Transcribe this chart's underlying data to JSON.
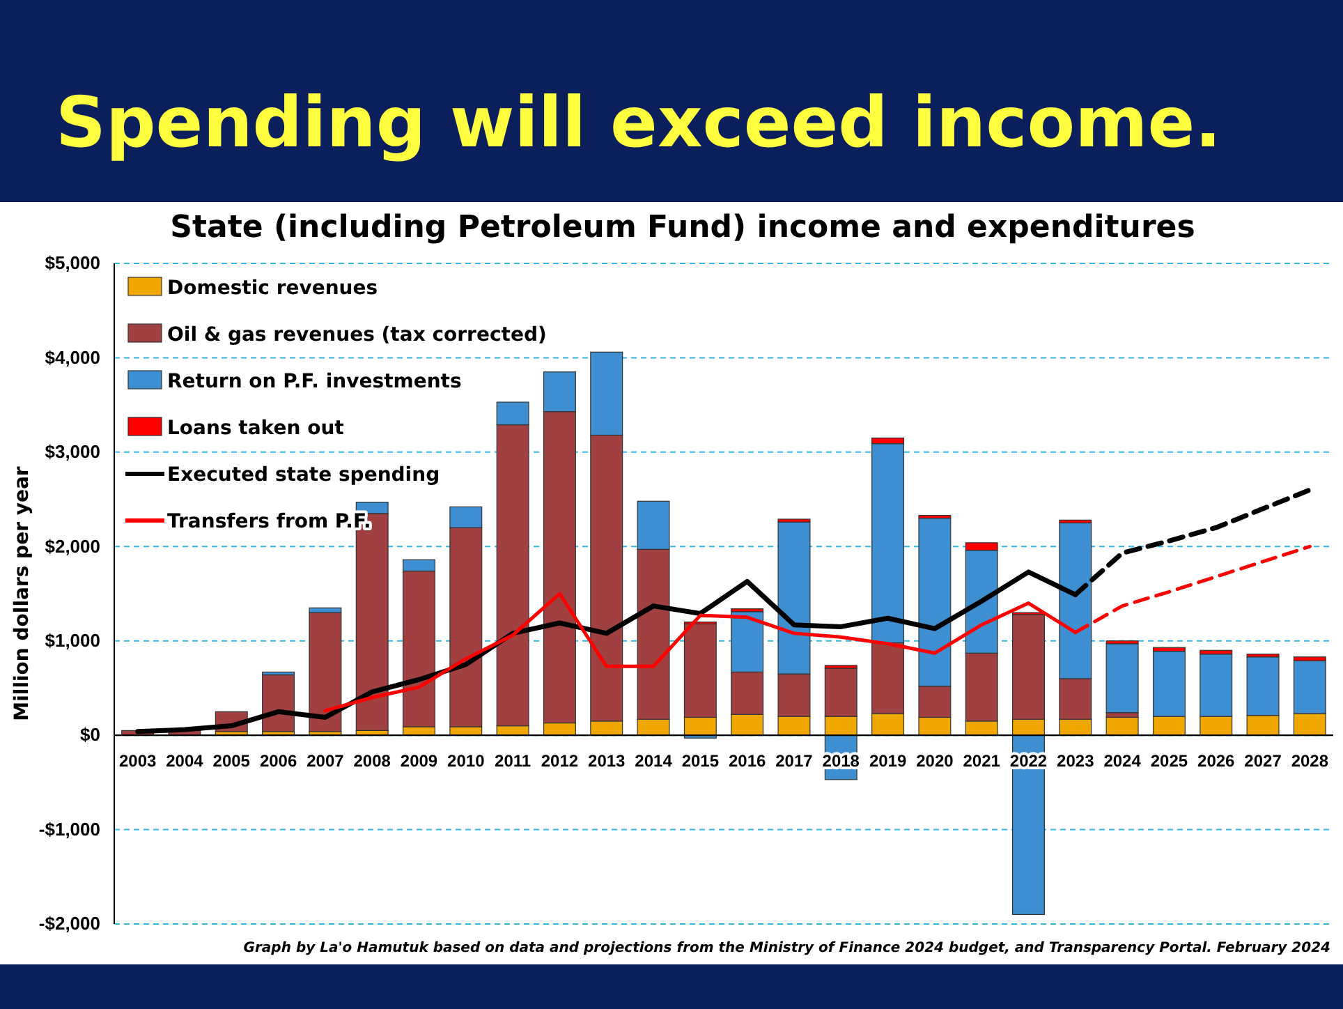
{
  "chart_data": {
    "type": "bar",
    "stacked": true,
    "title": "Spending will exceed income.",
    "subtitle": "State (including Petroleum Fund) income and expenditures",
    "ylabel": "Million dollars per year",
    "annotations": [
      "Graph by La'o Hamutuk based on data and projections from the Ministry of Finance 2024 budget, and Transparency Portal. February 2024"
    ],
    "categories": [
      "2003",
      "2004",
      "2005",
      "2006",
      "2007",
      "2008",
      "2009",
      "2010",
      "2011",
      "2012",
      "2013",
      "2014",
      "2015",
      "2016",
      "2017",
      "2018",
      "2019",
      "2020",
      "2021",
      "2022",
      "2023",
      "2024",
      "2025",
      "2026",
      "2027",
      "2028"
    ],
    "series": [
      {
        "name": "Domestic revenues",
        "color": "#f0a800",
        "values": [
          null,
          null,
          40,
          40,
          40,
          50,
          90,
          90,
          100,
          130,
          150,
          170,
          190,
          220,
          200,
          200,
          230,
          190,
          150,
          170,
          170,
          190,
          200,
          200,
          210,
          230
        ]
      },
      {
        "name": "Oil & gas revenues (tax corrected)",
        "color": "#a04040",
        "values": [
          50,
          50,
          210,
          600,
          1260,
          2300,
          1650,
          2110,
          3190,
          3300,
          3030,
          1800,
          990,
          450,
          450,
          510,
          750,
          330,
          720,
          1110,
          430,
          50,
          0,
          0,
          0,
          0
        ]
      },
      {
        "name": "Return on P.F. investments",
        "color": "#3d8fd1",
        "values": [
          0,
          0,
          0,
          30,
          50,
          120,
          120,
          220,
          240,
          420,
          880,
          510,
          -30,
          640,
          1610,
          -470,
          2110,
          1780,
          1090,
          -1900,
          1650,
          730,
          690,
          660,
          620,
          560
        ]
      },
      {
        "name": "Loans taken out",
        "color": "#ff0000",
        "values": [
          0,
          0,
          0,
          0,
          0,
          0,
          0,
          0,
          0,
          0,
          0,
          0,
          20,
          30,
          30,
          30,
          60,
          30,
          80,
          20,
          30,
          30,
          40,
          40,
          30,
          40
        ]
      },
      {
        "name": "Executed state spending",
        "type": "line",
        "color": "#000000",
        "line_style": "solid",
        "values": [
          40,
          60,
          100,
          250,
          190,
          460,
          590,
          750,
          1080,
          1190,
          1080,
          1370,
          1290,
          1630,
          1170,
          1150,
          1240,
          1130,
          1420,
          1730,
          1490,
          null,
          null,
          null,
          null,
          null
        ]
      },
      {
        "type": "line",
        "color": "#000000",
        "line_style": "dashed",
        "values": [
          null,
          null,
          null,
          null,
          null,
          null,
          null,
          null,
          null,
          null,
          null,
          null,
          null,
          null,
          null,
          null,
          null,
          null,
          null,
          null,
          1490,
          1930,
          2060,
          2200,
          2400,
          2600
        ]
      },
      {
        "name": "Transfers from P.F.",
        "type": "line",
        "color": "#ff0000",
        "line_style": "solid",
        "values": [
          null,
          null,
          null,
          null,
          260,
          400,
          510,
          810,
          1060,
          1500,
          730,
          730,
          1270,
          1250,
          1080,
          1040,
          970,
          870,
          1170,
          1400,
          1090,
          null,
          null,
          null,
          null,
          null
        ]
      },
      {
        "type": "line",
        "color": "#ff0000",
        "line_style": "dashed",
        "values": [
          null,
          null,
          null,
          null,
          null,
          null,
          null,
          null,
          null,
          null,
          null,
          null,
          null,
          null,
          null,
          null,
          null,
          null,
          null,
          null,
          1090,
          1370,
          1520,
          1680,
          1840,
          2000
        ]
      }
    ],
    "ylim": [
      -2000,
      5000
    ],
    "yticks": [
      {
        "value": -2000,
        "label": "-$2,000"
      },
      {
        "value": -1000,
        "label": "-$1,000"
      },
      {
        "value": 0,
        "label": "$0"
      },
      {
        "value": 1000,
        "label": "$1,000"
      },
      {
        "value": 2000,
        "label": "$2,000"
      },
      {
        "value": 3000,
        "label": "$3,000"
      },
      {
        "value": 4000,
        "label": "$4,000"
      },
      {
        "value": 5000,
        "label": "$5,000"
      }
    ],
    "grid": "y",
    "legend": "top left"
  }
}
